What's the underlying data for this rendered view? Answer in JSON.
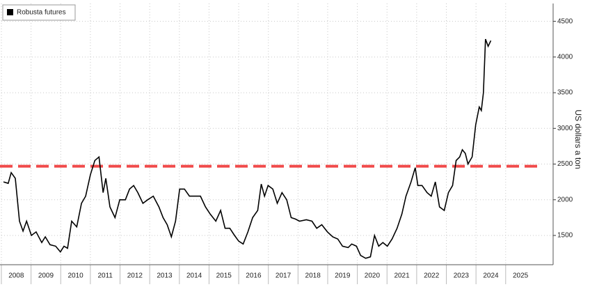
{
  "chart_data": {
    "type": "line",
    "legend_label": "Robusta futures",
    "y_axis_label": "US dollars a ton",
    "series": [
      {
        "name": "Robusta futures",
        "color": "#000000",
        "x": [
          2008.07,
          2008.23,
          2008.33,
          2008.47,
          2008.61,
          2008.73,
          2008.85,
          2009.01,
          2009.17,
          2009.36,
          2009.48,
          2009.64,
          2009.83,
          2009.99,
          2010.11,
          2010.23,
          2010.37,
          2010.54,
          2010.7,
          2010.84,
          2011.0,
          2011.15,
          2011.29,
          2011.43,
          2011.52,
          2011.66,
          2011.83,
          2011.99,
          2012.18,
          2012.32,
          2012.46,
          2012.6,
          2012.77,
          2012.93,
          2013.12,
          2013.31,
          2013.45,
          2013.59,
          2013.73,
          2013.87,
          2014.01,
          2014.17,
          2014.34,
          2014.53,
          2014.71,
          2014.88,
          2015.04,
          2015.23,
          2015.39,
          2015.54,
          2015.7,
          2015.86,
          2016.0,
          2016.15,
          2016.31,
          2016.47,
          2016.64,
          2016.76,
          2016.87,
          2016.99,
          2017.15,
          2017.3,
          2017.46,
          2017.62,
          2017.77,
          2017.91,
          2018.05,
          2018.28,
          2018.47,
          2018.63,
          2018.8,
          2018.99,
          2019.17,
          2019.34,
          2019.5,
          2019.69,
          2019.81,
          2019.97,
          2020.11,
          2020.28,
          2020.44,
          2020.58,
          2020.72,
          2020.86,
          2021.01,
          2021.17,
          2021.34,
          2021.5,
          2021.64,
          2021.81,
          2021.95,
          2022.04,
          2022.18,
          2022.35,
          2022.49,
          2022.63,
          2022.77,
          2022.93,
          2023.07,
          2023.21,
          2023.33,
          2023.45,
          2023.54,
          2023.64,
          2023.73,
          2023.87,
          2023.99,
          2024.11,
          2024.18,
          2024.25,
          2024.32,
          2024.41,
          2024.5
        ],
        "values": [
          2250,
          2230,
          2380,
          2300,
          1700,
          1560,
          1700,
          1500,
          1550,
          1400,
          1480,
          1370,
          1350,
          1270,
          1350,
          1320,
          1700,
          1620,
          1950,
          2050,
          2350,
          2550,
          2600,
          2100,
          2300,
          1900,
          1750,
          2000,
          2000,
          2150,
          2200,
          2100,
          1950,
          2000,
          2050,
          1900,
          1750,
          1650,
          1480,
          1700,
          2150,
          2150,
          2050,
          2050,
          2050,
          1900,
          1800,
          1700,
          1850,
          1600,
          1600,
          1500,
          1420,
          1380,
          1550,
          1750,
          1850,
          2220,
          2050,
          2200,
          2150,
          1950,
          2100,
          2000,
          1750,
          1730,
          1700,
          1720,
          1700,
          1600,
          1650,
          1550,
          1480,
          1450,
          1350,
          1330,
          1380,
          1350,
          1220,
          1180,
          1200,
          1500,
          1350,
          1400,
          1350,
          1450,
          1600,
          1800,
          2050,
          2250,
          2450,
          2200,
          2200,
          2100,
          2050,
          2250,
          1900,
          1850,
          2100,
          2200,
          2550,
          2600,
          2700,
          2650,
          2500,
          2600,
          3050,
          3300,
          3250,
          3500,
          4250,
          4150,
          4230
        ]
      }
    ],
    "reference_line": {
      "value": 2470,
      "color": "#f04a4a"
    },
    "xlim": [
      2008,
      2026.6
    ],
    "xticks": [
      2008,
      2009,
      2010,
      2011,
      2012,
      2013,
      2014,
      2015,
      2016,
      2017,
      2018,
      2019,
      2020,
      2021,
      2022,
      2023,
      2024,
      2025
    ],
    "ylim": [
      1090,
      4750
    ],
    "yticks": [
      1500,
      2000,
      2500,
      3000,
      3500,
      4000,
      4500
    ],
    "grid": true
  }
}
